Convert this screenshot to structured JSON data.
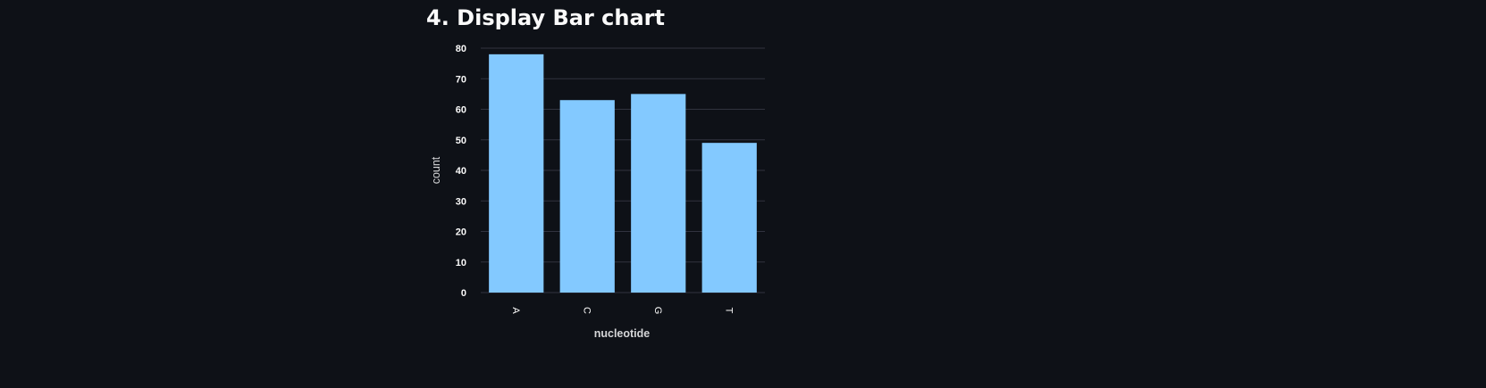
{
  "page": {
    "heading": "4. Display Bar chart"
  },
  "colors": {
    "background": "#0e1117",
    "bar": "#83c9ff",
    "grid": "#31333f",
    "text": "#fafafa",
    "axis_text": "#d5d6d8"
  },
  "chart_data": {
    "type": "bar",
    "categories": [
      "A",
      "C",
      "G",
      "T"
    ],
    "values": [
      78,
      63,
      65,
      49
    ],
    "xlabel": "nucleotide",
    "ylabel": "count",
    "ylim": [
      0,
      80
    ],
    "yticks": [
      0,
      10,
      20,
      30,
      40,
      50,
      60,
      70,
      80
    ],
    "grid": true,
    "legend": "none"
  }
}
